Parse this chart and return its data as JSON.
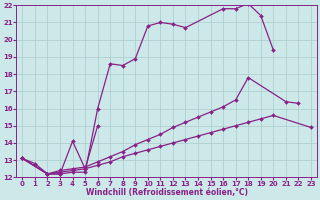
{
  "background_color": "#cce8e8",
  "grid_color": "#aacccc",
  "line_color": "#882288",
  "marker": "D",
  "markersize": 2.0,
  "linewidth": 0.9,
  "xlabel": "Windchill (Refroidissement éolien,°C)",
  "xlabel_fontsize": 5.5,
  "tick_fontsize": 5.0,
  "xlim": [
    -0.5,
    23.5
  ],
  "ylim": [
    12,
    22
  ],
  "yticks": [
    12,
    13,
    14,
    15,
    16,
    17,
    18,
    19,
    20,
    21,
    22
  ],
  "xticks": [
    0,
    1,
    2,
    3,
    4,
    5,
    6,
    7,
    8,
    9,
    10,
    11,
    12,
    13,
    14,
    15,
    16,
    17,
    18,
    19,
    20,
    21,
    22,
    23
  ],
  "lines": [
    {
      "x": [
        0,
        1,
        2,
        3,
        4,
        5,
        6,
        7,
        8,
        9,
        10,
        11,
        12,
        13,
        16,
        17,
        18,
        19,
        20
      ],
      "y": [
        13.1,
        12.8,
        12.2,
        12.2,
        12.3,
        12.3,
        16.0,
        18.6,
        18.5,
        18.9,
        20.8,
        21.0,
        20.9,
        20.7,
        21.8,
        21.8,
        22.1,
        21.4,
        19.4
      ]
    },
    {
      "x": [
        0,
        2,
        3,
        4,
        5,
        6
      ],
      "y": [
        13.1,
        12.2,
        12.2,
        14.1,
        12.5,
        15.0
      ]
    },
    {
      "x": [
        0,
        2,
        3,
        4,
        5,
        6,
        7,
        8,
        9,
        10,
        11,
        12,
        13,
        14,
        15,
        16,
        17,
        18,
        21,
        22
      ],
      "y": [
        13.1,
        12.2,
        12.4,
        12.5,
        12.6,
        12.9,
        13.2,
        13.5,
        13.9,
        14.2,
        14.5,
        14.9,
        15.2,
        15.5,
        15.8,
        16.1,
        16.5,
        17.8,
        16.4,
        16.3
      ]
    },
    {
      "x": [
        0,
        2,
        3,
        4,
        5,
        6,
        7,
        8,
        9,
        10,
        11,
        12,
        13,
        14,
        15,
        16,
        17,
        18,
        19,
        20,
        23
      ],
      "y": [
        13.1,
        12.2,
        12.3,
        12.4,
        12.5,
        12.7,
        12.9,
        13.2,
        13.4,
        13.6,
        13.8,
        14.0,
        14.2,
        14.4,
        14.6,
        14.8,
        15.0,
        15.2,
        15.4,
        15.6,
        14.9
      ]
    }
  ]
}
